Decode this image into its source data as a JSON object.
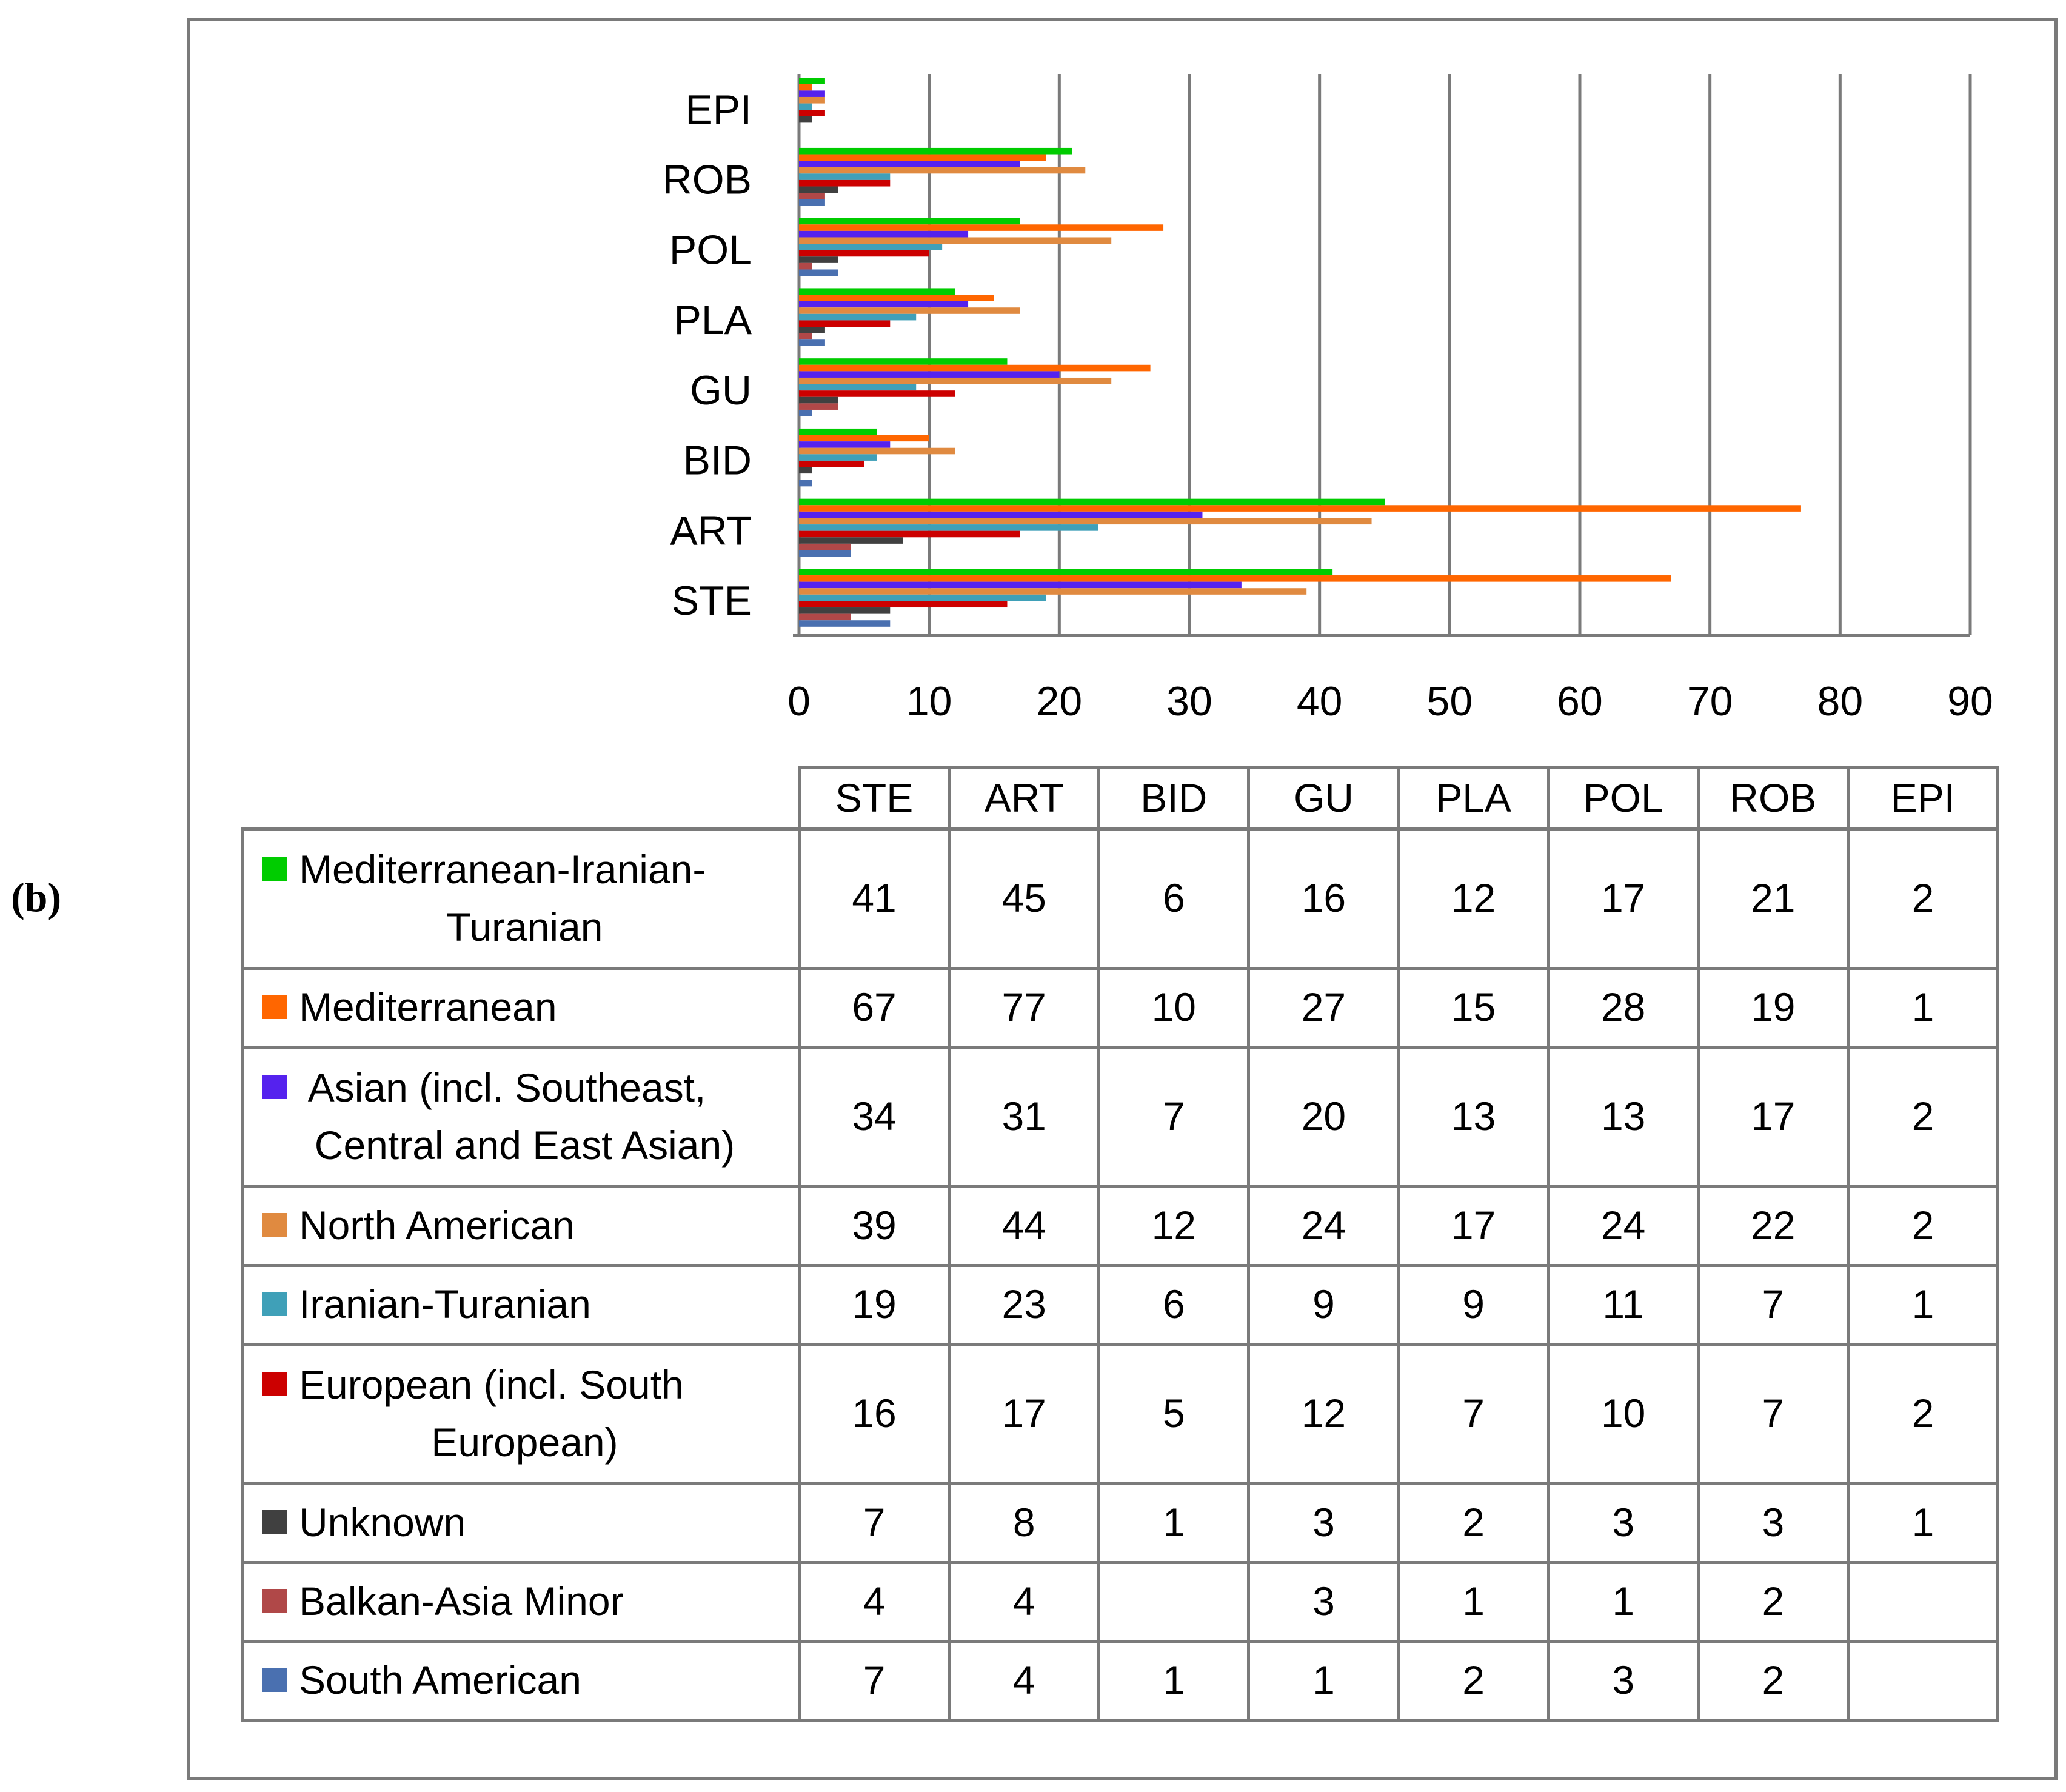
{
  "panel_label": "(b)",
  "chart_data": {
    "type": "bar",
    "orientation": "horizontal",
    "categories": [
      "STE",
      "ART",
      "BID",
      "GU",
      "PLA",
      "POL",
      "ROB",
      "EPI"
    ],
    "xlim": [
      0,
      90
    ],
    "x_ticks": [
      0,
      10,
      20,
      30,
      40,
      50,
      60,
      70,
      80,
      90
    ],
    "grid": "vertical",
    "legend": "data-table-below",
    "series": [
      {
        "name": "Mediterranean-Iranian-Turanian",
        "color": "#00cc00",
        "values": [
          41,
          45,
          6,
          16,
          12,
          17,
          21,
          2
        ]
      },
      {
        "name": "Mediterranean",
        "color": "#ff6600",
        "values": [
          67,
          77,
          10,
          27,
          15,
          28,
          19,
          1
        ]
      },
      {
        "name": "Asian (incl. Southeast, Central and East Asian)",
        "color": "#5522ee",
        "values": [
          34,
          31,
          7,
          20,
          13,
          13,
          17,
          2
        ]
      },
      {
        "name": "North American",
        "color": "#e08a40",
        "values": [
          39,
          44,
          12,
          24,
          17,
          24,
          22,
          2
        ]
      },
      {
        "name": "Iranian-Turanian",
        "color": "#3fa0b8",
        "values": [
          19,
          23,
          6,
          9,
          9,
          11,
          7,
          1
        ]
      },
      {
        "name": "European (incl. South European)",
        "color": "#cc0000",
        "values": [
          16,
          17,
          5,
          12,
          7,
          10,
          7,
          2
        ]
      },
      {
        "name": "Unknown",
        "color": "#404040",
        "values": [
          7,
          8,
          1,
          3,
          2,
          3,
          3,
          1
        ]
      },
      {
        "name": "Balkan-Asia Minor",
        "color": "#b04848",
        "values": [
          4,
          4,
          null,
          3,
          1,
          1,
          2,
          null
        ]
      },
      {
        "name": "South American",
        "color": "#4a70b0",
        "values": [
          7,
          4,
          1,
          1,
          2,
          3,
          2,
          null
        ]
      }
    ]
  },
  "table": {
    "headers": [
      "STE",
      "ART",
      "BID",
      "GU",
      "PLA",
      "POL",
      "ROB",
      "EPI"
    ],
    "rows": [
      {
        "label_lines": [
          "Mediterranean-Iranian-",
          "Turanian"
        ],
        "cells": [
          "41",
          "45",
          "6",
          "16",
          "12",
          "17",
          "21",
          "2"
        ]
      },
      {
        "label_lines": [
          "Mediterranean"
        ],
        "cells": [
          "67",
          "77",
          "10",
          "27",
          "15",
          "28",
          "19",
          "1"
        ]
      },
      {
        "label_lines": [
          " Asian (incl. Southeast,",
          "Central and East Asian)"
        ],
        "cells": [
          "34",
          "31",
          "7",
          "20",
          "13",
          "13",
          "17",
          "2"
        ]
      },
      {
        "label_lines": [
          "North American"
        ],
        "cells": [
          "39",
          "44",
          "12",
          "24",
          "17",
          "24",
          "22",
          "2"
        ]
      },
      {
        "label_lines": [
          "Iranian-Turanian"
        ],
        "cells": [
          "19",
          "23",
          "6",
          "9",
          "9",
          "11",
          "7",
          "1"
        ]
      },
      {
        "label_lines": [
          "European (incl. South",
          "European)"
        ],
        "cells": [
          "16",
          "17",
          "5",
          "12",
          "7",
          "10",
          "7",
          "2"
        ]
      },
      {
        "label_lines": [
          "Unknown"
        ],
        "cells": [
          "7",
          "8",
          "1",
          "3",
          "2",
          "3",
          "3",
          "1"
        ]
      },
      {
        "label_lines": [
          "Balkan-Asia Minor"
        ],
        "cells": [
          "4",
          "4",
          "",
          "3",
          "1",
          "1",
          "2",
          ""
        ]
      },
      {
        "label_lines": [
          "South American"
        ],
        "cells": [
          "7",
          "4",
          "1",
          "1",
          "2",
          "3",
          "2",
          ""
        ]
      }
    ]
  }
}
